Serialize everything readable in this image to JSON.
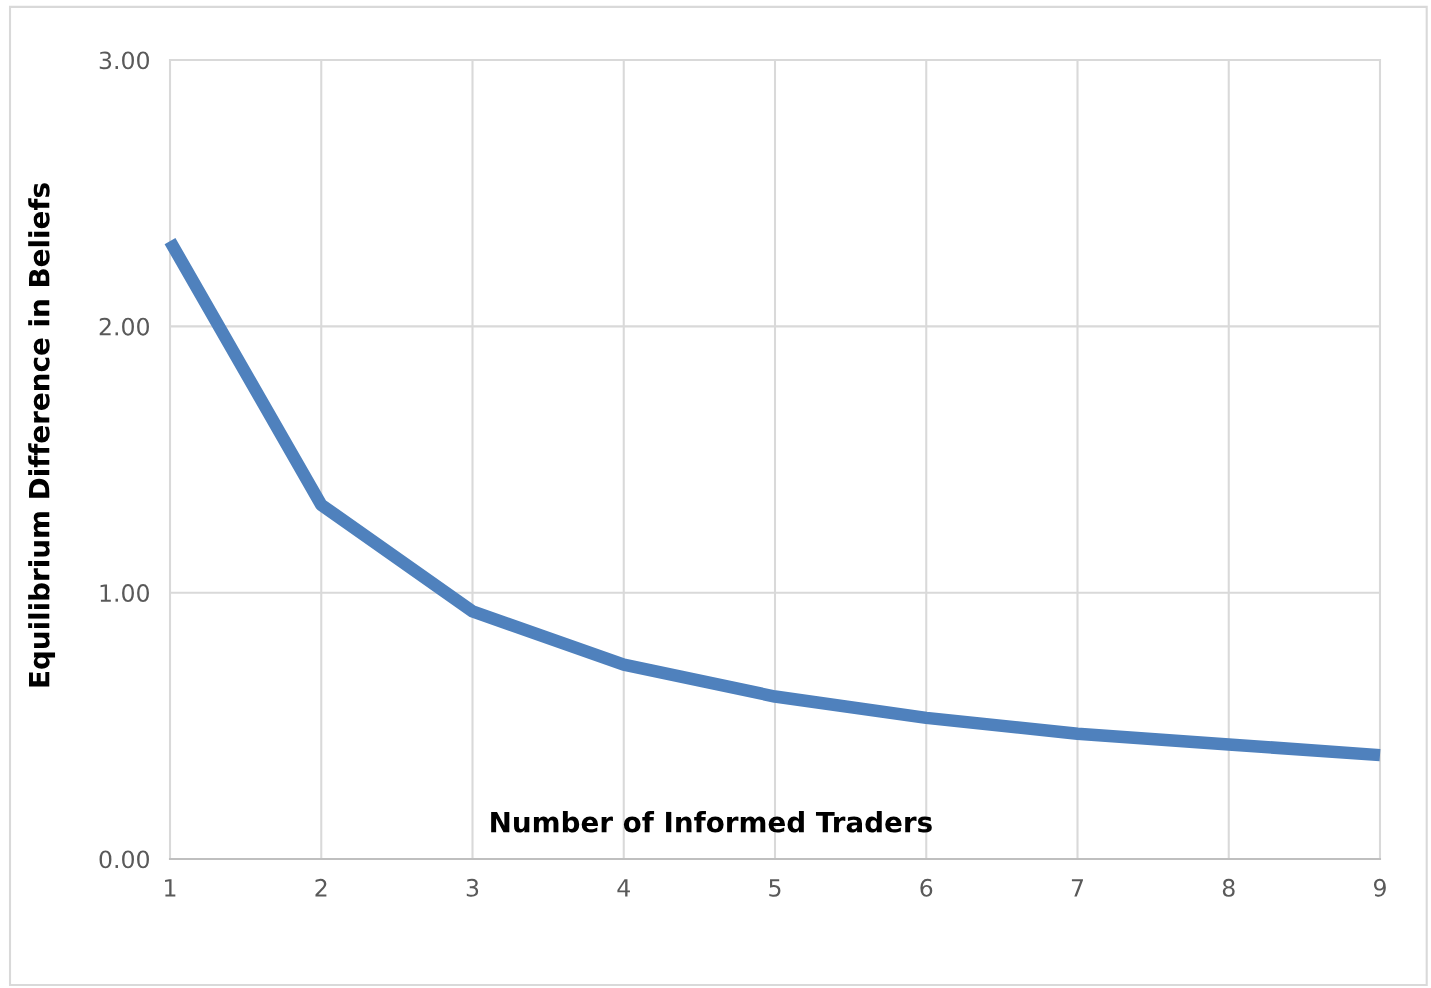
{
  "chart_data": {
    "type": "line",
    "xlabel": "Number of Informed Traders",
    "ylabel": "Equilibrium Difference in Beliefs",
    "x": [
      1,
      2,
      3,
      4,
      5,
      6,
      7,
      8,
      9
    ],
    "series": [
      {
        "color": "#4f81bd",
        "values": [
          2.32,
          1.33,
          0.93,
          0.73,
          0.61,
          0.53,
          0.47,
          0.43,
          0.39
        ]
      }
    ],
    "xlim": [
      1,
      9
    ],
    "xticks": [
      1,
      2,
      3,
      4,
      5,
      6,
      7,
      8,
      9
    ],
    "ylim": [
      0,
      3
    ],
    "yticks": [
      {
        "value": 0,
        "label": "0.00"
      },
      {
        "value": 1,
        "label": "1.00"
      },
      {
        "value": 2,
        "label": "2.00"
      },
      {
        "value": 3,
        "label": "3.00"
      }
    ],
    "grid": true,
    "marker": "none",
    "line_style": "solid"
  }
}
